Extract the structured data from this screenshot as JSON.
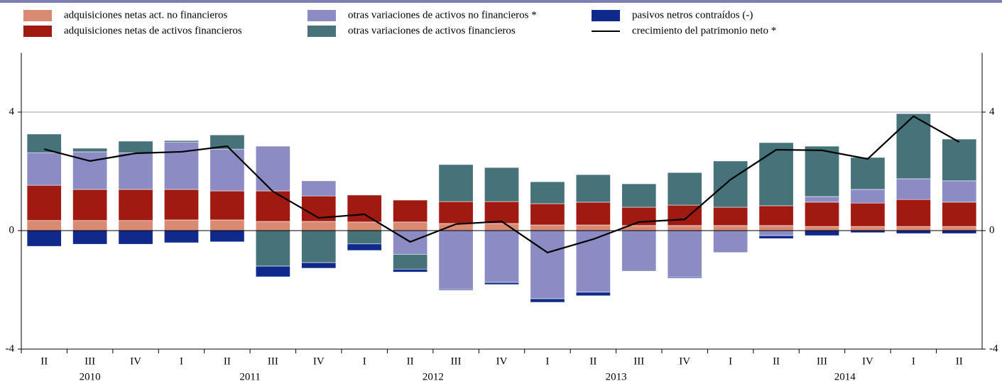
{
  "chart_data": {
    "type": "bar",
    "stacked": true,
    "categories": [
      "II",
      "III",
      "IV",
      "I",
      "II",
      "III",
      "IV",
      "I",
      "II",
      "III",
      "IV",
      "I",
      "II",
      "III",
      "IV",
      "I",
      "II",
      "III",
      "IV",
      "I",
      "II"
    ],
    "years": [
      {
        "label": "2010",
        "count": 3
      },
      {
        "label": "2011",
        "count": 4
      },
      {
        "label": "2012",
        "count": 4
      },
      {
        "label": "2013",
        "count": 4
      },
      {
        "label": "2014",
        "count": 6
      }
    ],
    "series": [
      {
        "name": "adquisiciones netas act. no financieros",
        "color": "#d98a72",
        "values": [
          0.34,
          0.34,
          0.34,
          0.36,
          0.36,
          0.31,
          0.31,
          0.29,
          0.29,
          0.24,
          0.24,
          0.19,
          0.19,
          0.17,
          0.17,
          0.17,
          0.17,
          0.14,
          0.14,
          0.14,
          0.14
        ]
      },
      {
        "name": "adquisiciones netas de activos financieros",
        "color": "#a01a12",
        "values": [
          1.19,
          1.05,
          1.05,
          1.03,
          0.98,
          1.03,
          0.86,
          0.91,
          0.74,
          0.74,
          0.74,
          0.72,
          0.77,
          0.62,
          0.69,
          0.62,
          0.67,
          0.82,
          0.79,
          0.91,
          0.82
        ]
      },
      {
        "name": "otras variaciones de activos no financieros *",
        "color": "#8c8cc4",
        "values": [
          1.1,
          1.27,
          1.24,
          1.6,
          1.41,
          1.51,
          0.51,
          0,
          -0.8,
          -1.99,
          -1.75,
          -2.3,
          -2.08,
          -1.37,
          -1.58,
          -0.74,
          -0.17,
          0.19,
          0.46,
          0.7,
          0.72
        ]
      },
      {
        "name": "otras variaciones de activos financieros",
        "color": "#46737a",
        "values": [
          0.63,
          0.12,
          0.39,
          0.05,
          0.48,
          -1.2,
          -1.08,
          -0.45,
          -0.5,
          1.25,
          1.15,
          0.74,
          0.93,
          0.79,
          1.1,
          1.56,
          2.13,
          1.7,
          1.08,
          2.2,
          1.41
        ]
      },
      {
        "name": "pasivos netros contraídos (-)",
        "color": "#102a8c",
        "values": [
          -0.53,
          -0.46,
          -0.46,
          -0.41,
          -0.38,
          -0.36,
          -0.19,
          -0.22,
          -0.1,
          -0.03,
          -0.07,
          -0.12,
          -0.12,
          0,
          -0.03,
          0,
          -0.1,
          -0.17,
          -0.07,
          -0.1,
          -0.1
        ]
      }
    ],
    "line": {
      "name": "crecimiento del patrimonio neto *",
      "color": "#000000",
      "values": [
        2.75,
        2.35,
        2.61,
        2.66,
        2.85,
        1.32,
        0.43,
        0.55,
        -0.38,
        0.22,
        0.31,
        -0.74,
        -0.29,
        0.29,
        0.38,
        1.72,
        2.73,
        2.71,
        2.42,
        3.86,
        2.99
      ]
    },
    "ylim": [
      -4,
      6
    ],
    "yticks": [
      -4,
      0,
      4
    ],
    "grid": true
  }
}
